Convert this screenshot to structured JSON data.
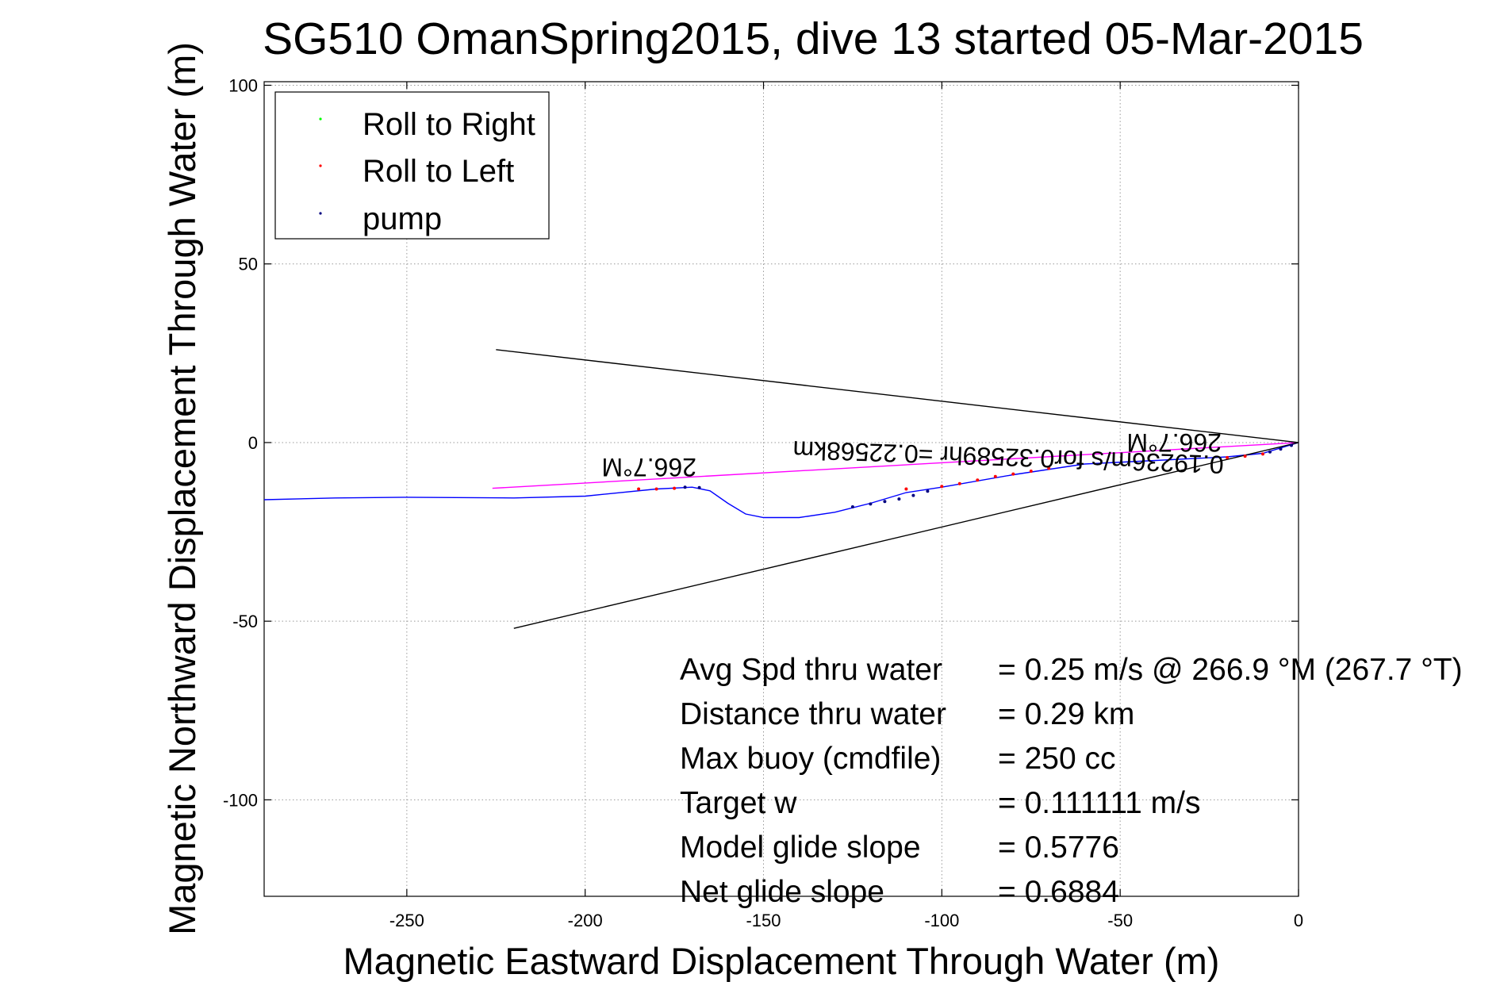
{
  "chart_data": {
    "type": "line",
    "title": "SG510 OmanSpring2015, dive 13 started 05-Mar-2015",
    "xlabel": "Magnetic Eastward Displacement Through Water (m)",
    "ylabel": "Magnetic Northward Displacement Through Water (m)",
    "xlim": [
      -290,
      0
    ],
    "ylim": [
      -127,
      101
    ],
    "xticks": [
      -250,
      -200,
      -150,
      -100,
      -50,
      0
    ],
    "yticks": [
      100,
      50,
      0,
      -50,
      -100
    ],
    "grid": true,
    "legend": {
      "placement": "top-left",
      "entries": [
        {
          "label": "Roll to Right",
          "color": "#00ff00"
        },
        {
          "label": "Roll to Left",
          "color": "#ff0000"
        },
        {
          "label": "pump",
          "color": "#000080"
        }
      ]
    },
    "series": [
      {
        "color": "#0000ff",
        "points": [
          [
            -290,
            -16
          ],
          [
            -270,
            -15.5
          ],
          [
            -250,
            -15.3
          ],
          [
            -220,
            -15.5
          ],
          [
            -200,
            -15
          ],
          [
            -180,
            -13
          ],
          [
            -170,
            -12.5
          ],
          [
            -165,
            -13.5
          ],
          [
            -160,
            -17
          ],
          [
            -155,
            -20
          ],
          [
            -150,
            -21
          ],
          [
            -140,
            -21
          ],
          [
            -130,
            -19.5
          ],
          [
            -120,
            -17
          ],
          [
            -110,
            -14
          ],
          [
            -100,
            -12.5
          ],
          [
            -80,
            -9
          ],
          [
            -60,
            -6
          ],
          [
            -40,
            -5
          ],
          [
            -20,
            -4
          ],
          [
            -10,
            -3
          ],
          [
            0,
            0
          ]
        ]
      },
      {
        "color": "#ff00ff",
        "points": [
          [
            -226,
            -12.8
          ],
          [
            0,
            0
          ]
        ]
      },
      {
        "color": "#000000",
        "points": [
          [
            -225,
            26
          ],
          [
            0,
            0
          ]
        ]
      },
      {
        "color": "#000000",
        "points": [
          [
            -220,
            -52
          ],
          [
            0,
            0
          ]
        ]
      }
    ],
    "markers": [
      {
        "color": "#ff0000",
        "points": [
          [
            -185,
            -13
          ],
          [
            -180,
            -13
          ],
          [
            -175,
            -12.8
          ],
          [
            -110,
            -13
          ],
          [
            -100,
            -12.3
          ],
          [
            -95,
            -11.5
          ],
          [
            -90,
            -10.5
          ],
          [
            -85,
            -9.5
          ],
          [
            -80,
            -8.8
          ],
          [
            -75,
            -8
          ],
          [
            -70,
            -7.2
          ],
          [
            -20,
            -4.2
          ],
          [
            -15,
            -3.8
          ],
          [
            -10,
            -3.2
          ]
        ]
      },
      {
        "color": "#000080",
        "points": [
          [
            -172,
            -12.5
          ],
          [
            -168,
            -12.6
          ],
          [
            -125,
            -18
          ],
          [
            -120,
            -17.2
          ],
          [
            -116,
            -16.5
          ],
          [
            -112,
            -15.8
          ],
          [
            -108,
            -14.8
          ],
          [
            -104,
            -13.6
          ],
          [
            -8,
            -2.6
          ],
          [
            -5,
            -1.8
          ],
          [
            -2,
            -0.8
          ]
        ]
      }
    ],
    "annotations": {
      "heading_label_1": "266.7°M",
      "heading_label_2": "266.7°M",
      "track_label": "0.19236m/s for0.32589hr =0.22568km"
    },
    "stats": [
      {
        "label": "Avg Spd thru water",
        "value": "=  0.25 m/s @ 266.9 °M (267.7 °T)"
      },
      {
        "label": "Distance thru water",
        "value": "=  0.29 km"
      },
      {
        "label": "Max buoy (cmdfile)",
        "value": "= 250 cc"
      },
      {
        "label": "Target w",
        "value": "= 0.111111 m/s"
      },
      {
        "label": "Model glide slope",
        "value": "= 0.5776"
      },
      {
        "label": "Net glide slope",
        "value": "= 0.6884"
      }
    ]
  }
}
